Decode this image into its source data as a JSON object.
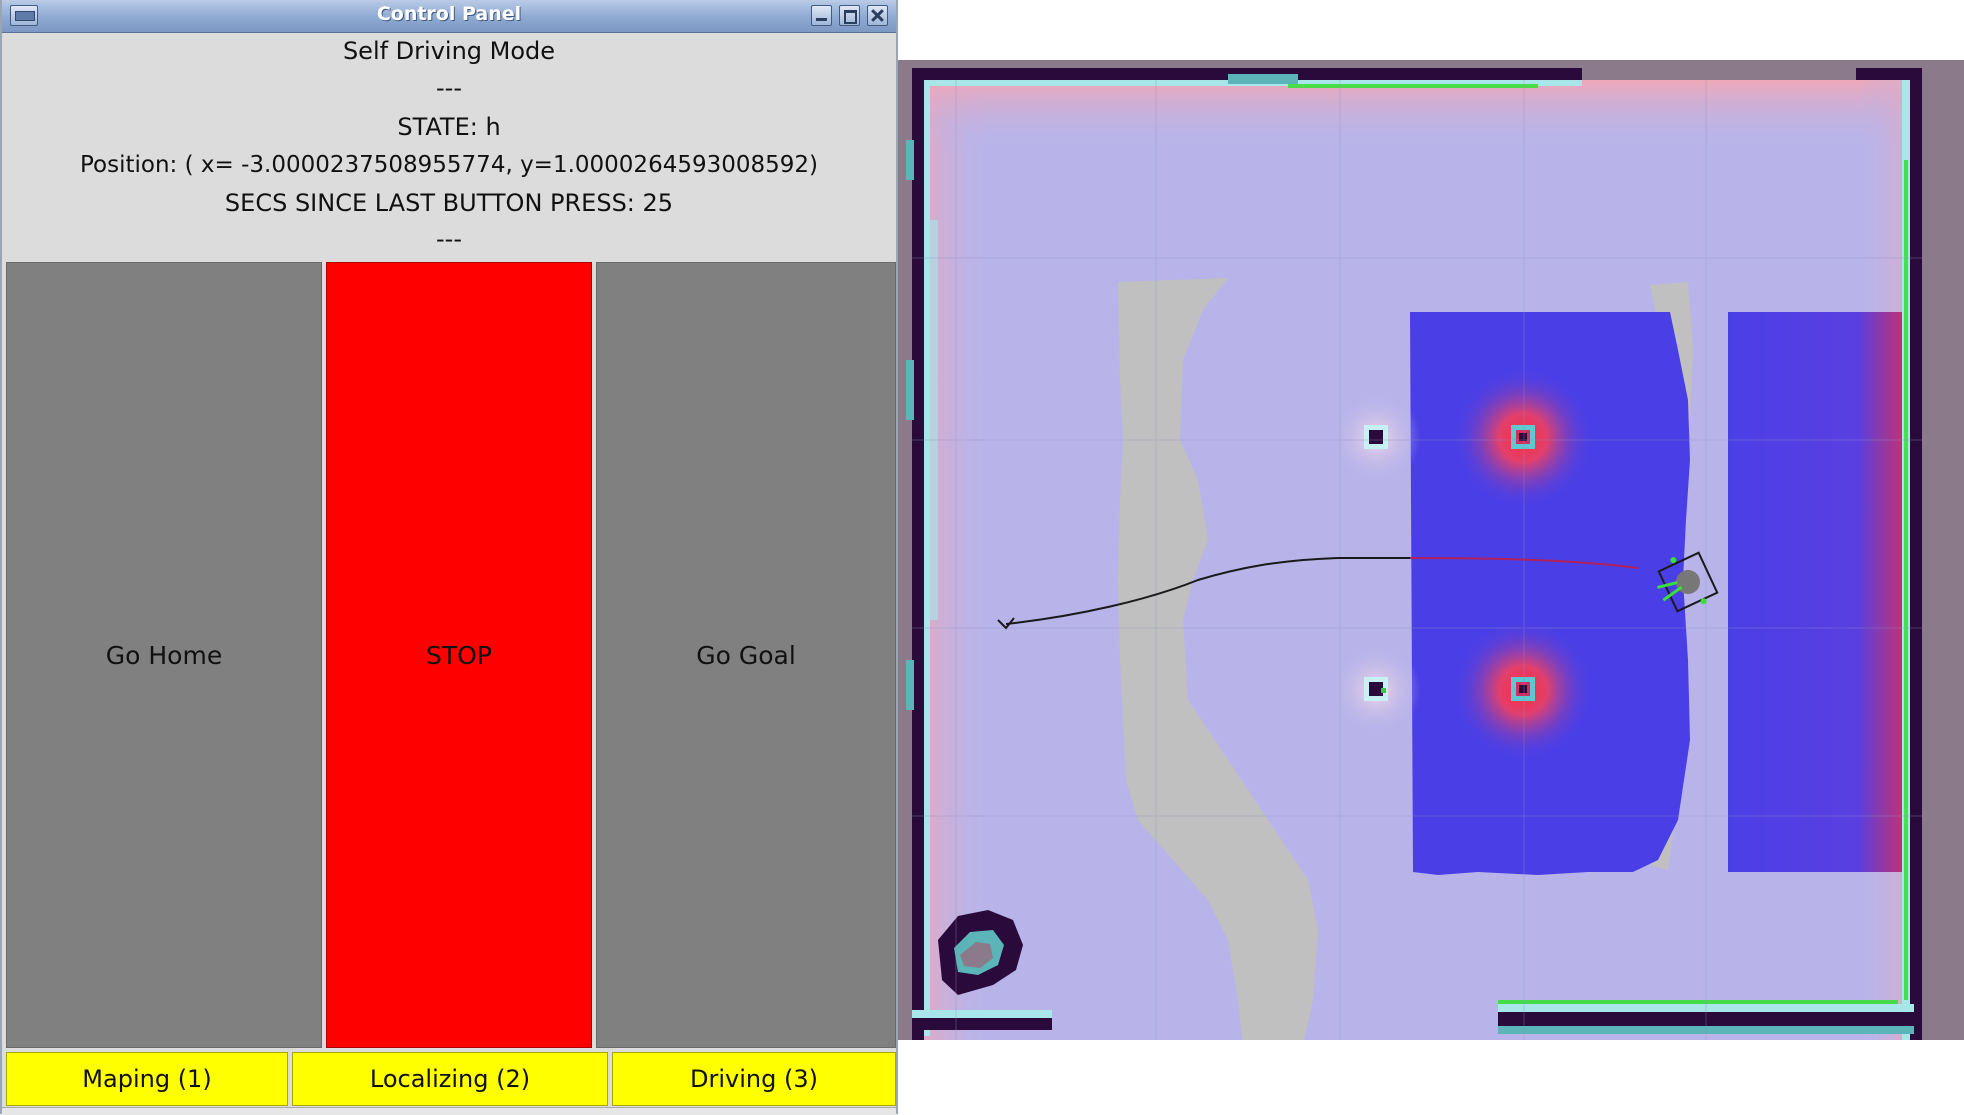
{
  "window": {
    "title": "Control Panel"
  },
  "info": {
    "mode": "Self Driving Mode",
    "separator_top": "---",
    "state": "STATE: h",
    "position": "Position: ( x= -3.0000237508955774, y=1.0000264593008592)",
    "secs_since_press": "SECS SINCE LAST BUTTON PRESS: 25",
    "separator_bottom": "---"
  },
  "actions": {
    "home_label": "Go Home",
    "stop_label": "STOP",
    "goal_label": "Go Goal"
  },
  "modes": {
    "maping_label": "Maping (1)",
    "localizing_label": "Localizing (2)",
    "driving_label": "Driving (3)"
  },
  "colors": {
    "stop_button": "#ff0000",
    "nav_button": "#808080",
    "mode_button": "#ffff00",
    "map_free_space": "#b7b3e9",
    "map_costmap": "#4a3fe6",
    "map_inflation": "#e63a5a",
    "map_wall": "#2a0a3a",
    "map_unknown": "#c0c0c0"
  },
  "map": {
    "icons": [
      "robot-icon",
      "obstacle-icon",
      "path-line",
      "laser-scan-points"
    ]
  }
}
